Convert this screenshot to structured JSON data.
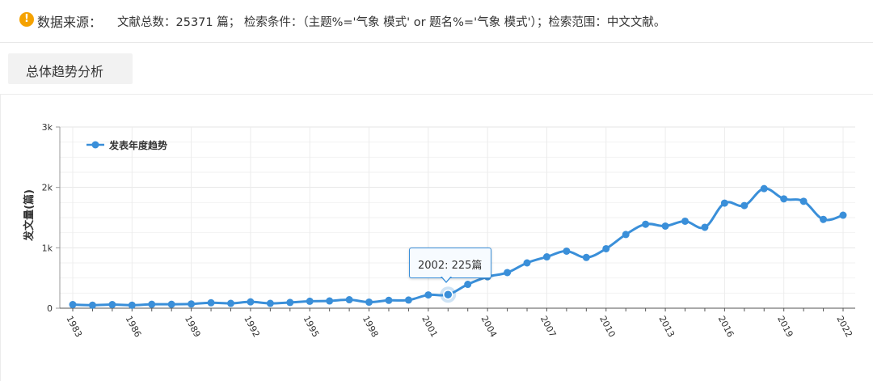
{
  "header": {
    "source_label": "数据来源：",
    "source_text": "文献总数：25371 篇；  检索条件：（主题%='气象 模式' or 题名%='气象 模式'）；检索范围：中文文献。"
  },
  "section": {
    "tab_label": "总体趋势分析"
  },
  "tooltip": {
    "text": "2002: 225篇"
  },
  "chart_data": {
    "type": "line",
    "title": "",
    "xlabel": "",
    "ylabel": "发文量(篇)",
    "ylim": [
      0,
      3000
    ],
    "y_ticks": [
      0,
      1000,
      2000,
      3000
    ],
    "y_tick_labels": [
      "0",
      "1k",
      "2k",
      "3k"
    ],
    "x_tick_labels": [
      "1983",
      "1986",
      "1989",
      "1992",
      "1995",
      "1998",
      "2001",
      "2004",
      "2007",
      "2010",
      "2013",
      "2016",
      "2019",
      "2022"
    ],
    "legend": {
      "placement": "top-left"
    },
    "grid": true,
    "highlighted_point": {
      "x": 2002,
      "y": 225
    },
    "series": [
      {
        "name": "发表年度趋势",
        "color": "#3a8fd9",
        "points": [
          {
            "x": 1983,
            "y": 60
          },
          {
            "x": 1984,
            "y": 50
          },
          {
            "x": 1985,
            "y": 60
          },
          {
            "x": 1986,
            "y": 50
          },
          {
            "x": 1987,
            "y": 65
          },
          {
            "x": 1988,
            "y": 65
          },
          {
            "x": 1989,
            "y": 70
          },
          {
            "x": 1990,
            "y": 90
          },
          {
            "x": 1991,
            "y": 80
          },
          {
            "x": 1992,
            "y": 105
          },
          {
            "x": 1993,
            "y": 80
          },
          {
            "x": 1994,
            "y": 95
          },
          {
            "x": 1995,
            "y": 115
          },
          {
            "x": 1996,
            "y": 120
          },
          {
            "x": 1997,
            "y": 140
          },
          {
            "x": 1998,
            "y": 100
          },
          {
            "x": 1999,
            "y": 130
          },
          {
            "x": 2000,
            "y": 135
          },
          {
            "x": 2001,
            "y": 220
          },
          {
            "x": 2002,
            "y": 225
          },
          {
            "x": 2003,
            "y": 395
          },
          {
            "x": 2004,
            "y": 520
          },
          {
            "x": 2005,
            "y": 590
          },
          {
            "x": 2006,
            "y": 750
          },
          {
            "x": 2007,
            "y": 850
          },
          {
            "x": 2008,
            "y": 945
          },
          {
            "x": 2009,
            "y": 840
          },
          {
            "x": 2010,
            "y": 985
          },
          {
            "x": 2011,
            "y": 1220
          },
          {
            "x": 2012,
            "y": 1390
          },
          {
            "x": 2013,
            "y": 1360
          },
          {
            "x": 2014,
            "y": 1440
          },
          {
            "x": 2015,
            "y": 1340
          },
          {
            "x": 2016,
            "y": 1740
          },
          {
            "x": 2017,
            "y": 1700
          },
          {
            "x": 2018,
            "y": 1980
          },
          {
            "x": 2019,
            "y": 1810
          },
          {
            "x": 2020,
            "y": 1770
          },
          {
            "x": 2021,
            "y": 1470
          },
          {
            "x": 2022,
            "y": 1540
          }
        ]
      }
    ]
  }
}
